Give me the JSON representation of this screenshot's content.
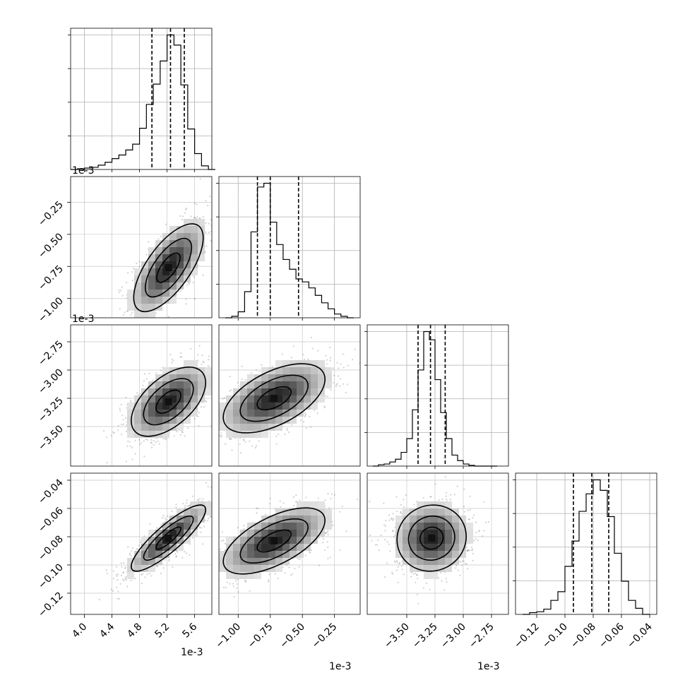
{
  "chart_data": {
    "type": "corner",
    "grid": true,
    "params": [
      {
        "range": [
          3.8,
          5.85
        ],
        "ticks": [
          4.0,
          4.4,
          4.8,
          5.2,
          5.6
        ],
        "ticklabels": [
          "4.0",
          "4.4",
          "4.8",
          "5.2",
          "5.6"
        ],
        "offset": "1e-3",
        "quantiles": [
          4.98,
          5.25,
          5.45
        ],
        "hist_edges": [
          3.8,
          3.9,
          4.0,
          4.1,
          4.2,
          4.3,
          4.4,
          4.5,
          4.6,
          4.7,
          4.8,
          4.9,
          5.0,
          5.1,
          5.2,
          5.3,
          5.4,
          5.5,
          5.6,
          5.7,
          5.8,
          5.9
        ],
        "hist_counts": [
          0,
          1,
          2,
          3,
          6,
          10,
          15,
          20,
          27,
          35,
          57,
          90,
          118,
          150,
          186,
          172,
          117,
          56,
          22,
          5,
          0
        ]
      },
      {
        "range": [
          -1.15,
          -0.05
        ],
        "ticks": [
          -1.0,
          -0.75,
          -0.5,
          -0.25
        ],
        "ticklabels": [
          "−1.00",
          "−0.75",
          "−0.50",
          "−0.25"
        ],
        "offset": "1e-3",
        "quantiles": [
          -0.85,
          -0.75,
          -0.53
        ],
        "hist_edges": [
          -1.1,
          -1.05,
          -1.0,
          -0.95,
          -0.9,
          -0.85,
          -0.8,
          -0.75,
          -0.7,
          -0.65,
          -0.6,
          -0.55,
          -0.5,
          -0.45,
          -0.4,
          -0.35,
          -0.3,
          -0.25,
          -0.2,
          -0.15,
          -0.1
        ],
        "hist_counts": [
          0,
          2,
          8,
          35,
          115,
          175,
          180,
          128,
          98,
          78,
          65,
          52,
          48,
          40,
          30,
          20,
          12,
          5,
          2,
          0
        ]
      },
      {
        "range": [
          -3.85,
          -2.6
        ],
        "ticks": [
          -3.5,
          -3.25,
          -3.0,
          -2.75
        ],
        "ticklabels": [
          "−3.50",
          "−3.25",
          "−3.00",
          "−2.75"
        ],
        "offset": "1e-3",
        "quantiles": [
          -3.4,
          -3.29,
          -3.16
        ],
        "hist_edges": [
          -3.8,
          -3.75,
          -3.7,
          -3.65,
          -3.6,
          -3.55,
          -3.5,
          -3.45,
          -3.4,
          -3.35,
          -3.3,
          -3.25,
          -3.2,
          -3.15,
          -3.1,
          -3.05,
          -3.0,
          -2.95,
          -2.9,
          -2.85,
          -2.8,
          -2.75,
          -2.7
        ],
        "hist_counts": [
          0,
          2,
          3,
          6,
          10,
          20,
          40,
          82,
          140,
          196,
          184,
          126,
          78,
          40,
          16,
          8,
          3,
          1,
          0,
          0,
          0,
          0
        ]
      },
      {
        "range": [
          -0.135,
          -0.035
        ],
        "ticks": [
          -0.12,
          -0.1,
          -0.08,
          -0.06,
          -0.04
        ],
        "ticklabels": [
          "−0.12",
          "−0.10",
          "−0.08",
          "−0.06",
          "−0.04"
        ],
        "offset": "",
        "quantiles": [
          -0.094,
          -0.081,
          -0.069
        ],
        "hist_edges": [
          -0.13,
          -0.125,
          -0.12,
          -0.115,
          -0.11,
          -0.105,
          -0.1,
          -0.095,
          -0.09,
          -0.085,
          -0.08,
          -0.075,
          -0.07,
          -0.065,
          -0.06,
          -0.055,
          -0.05,
          -0.045,
          -0.04
        ],
        "hist_counts": [
          0,
          2,
          3,
          6,
          16,
          26,
          55,
          84,
          118,
          138,
          154,
          142,
          112,
          70,
          38,
          16,
          7,
          0
        ]
      }
    ],
    "pairs": [
      {
        "row": 1,
        "col": 0,
        "mean": [
          5.22,
          -0.76
        ],
        "sd": [
          0.28,
          0.19
        ],
        "rho": 0.68
      },
      {
        "row": 2,
        "col": 0,
        "mean": [
          5.22,
          -3.28
        ],
        "sd": [
          0.3,
          0.17
        ],
        "rho": 0.55
      },
      {
        "row": 2,
        "col": 1,
        "mean": [
          -0.72,
          -3.25
        ],
        "sd": [
          0.22,
          0.17
        ],
        "rho": 0.55
      },
      {
        "row": 3,
        "col": 0,
        "mean": [
          5.22,
          -0.081
        ],
        "sd": [
          0.3,
          0.013
        ],
        "rho": 0.86
      },
      {
        "row": 3,
        "col": 1,
        "mean": [
          -0.72,
          -0.083
        ],
        "sd": [
          0.22,
          0.013
        ],
        "rho": 0.62
      },
      {
        "row": 3,
        "col": 2,
        "mean": [
          -3.28,
          -0.081
        ],
        "sd": [
          0.17,
          0.013
        ],
        "rho": 0.05
      }
    ]
  }
}
